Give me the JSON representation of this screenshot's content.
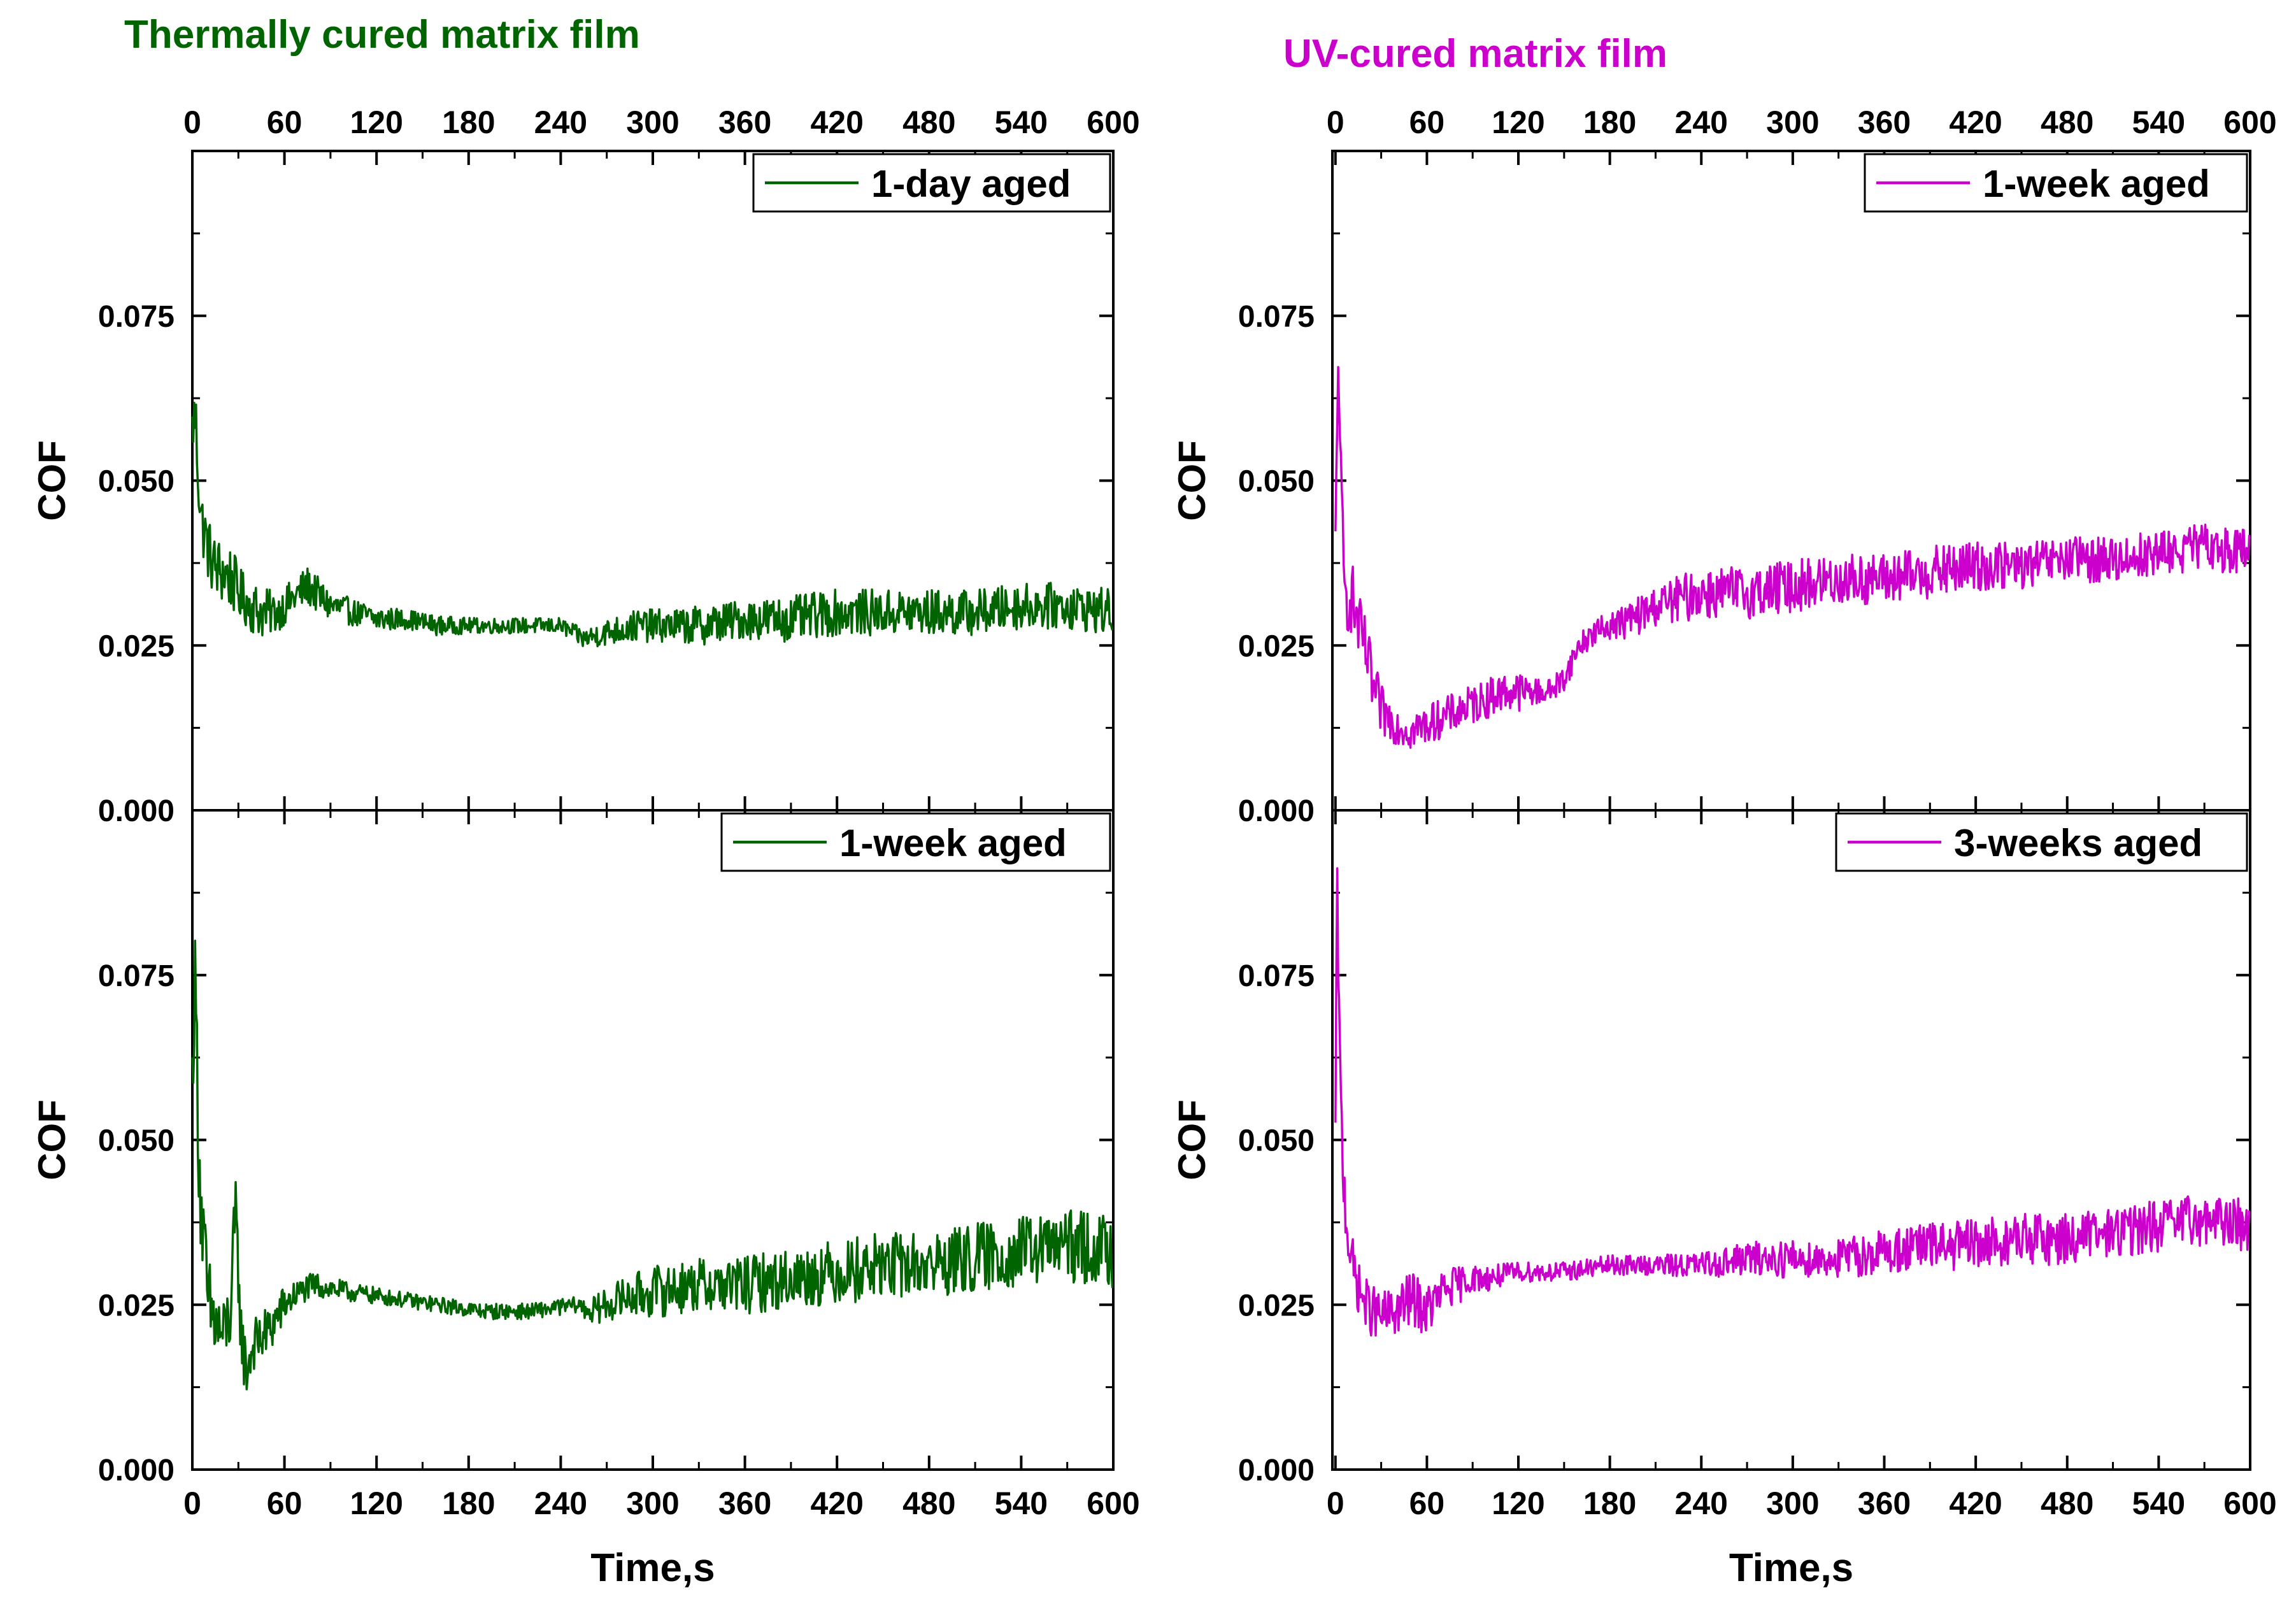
{
  "figure": {
    "left_title": "Thermally cured matrix film",
    "right_title": "UV-cured matrix film",
    "left_color": "#006400",
    "right_color": "#CC00CC"
  },
  "chart_data": [
    {
      "type": "line",
      "id": "tl",
      "color": "#006400",
      "legend": "1-day aged",
      "legend_location": "top-right",
      "xlabel": "",
      "ylabel": "COF",
      "xlim": [
        0,
        600
      ],
      "ylim": [
        0,
        0.1
      ],
      "xticks": [
        "0",
        "60",
        "120",
        "180",
        "240",
        "300",
        "360",
        "420",
        "480",
        "540",
        "600"
      ],
      "yticks": [
        "0.000",
        "0.025",
        "0.050",
        "0.075"
      ],
      "series": [
        {
          "name": "1-day aged",
          "x": [
            0,
            2,
            4,
            6,
            10,
            14,
            20,
            26,
            30,
            38,
            45,
            55,
            65,
            75,
            90,
            105,
            120,
            140,
            160,
            180,
            200,
            220,
            240,
            255,
            270,
            290,
            310,
            330,
            360,
            390,
            420,
            450,
            480,
            510,
            540,
            570,
            600
          ],
          "y": [
            0.058,
            0.06,
            0.05,
            0.044,
            0.04,
            0.037,
            0.036,
            0.035,
            0.033,
            0.031,
            0.03,
            0.03,
            0.032,
            0.034,
            0.031,
            0.03,
            0.029,
            0.029,
            0.028,
            0.028,
            0.028,
            0.028,
            0.028,
            0.026,
            0.027,
            0.028,
            0.028,
            0.028,
            0.029,
            0.029,
            0.03,
            0.03,
            0.03,
            0.03,
            0.031,
            0.031,
            0.03
          ],
          "noise": [
            0.004,
            0.006,
            0.005,
            0.005,
            0.005,
            0.005,
            0.005,
            0.005,
            0.004,
            0.004,
            0.004,
            0.003,
            0.003,
            0.003,
            0.0025,
            0.002,
            0.002,
            0.0015,
            0.0015,
            0.0012,
            0.0012,
            0.0012,
            0.0012,
            0.0015,
            0.002,
            0.0025,
            0.0025,
            0.003,
            0.003,
            0.0035,
            0.0035,
            0.0035,
            0.0035,
            0.0035,
            0.0035,
            0.0035,
            0.0035
          ]
        }
      ]
    },
    {
      "type": "line",
      "id": "bl",
      "color": "#006400",
      "legend": "1-week aged",
      "legend_location": "top-right",
      "xlabel": "Time,s",
      "ylabel": "COF",
      "xlim": [
        0,
        600
      ],
      "ylim": [
        0,
        0.1
      ],
      "xticks": [
        "0",
        "60",
        "120",
        "180",
        "240",
        "300",
        "360",
        "420",
        "480",
        "540",
        "600"
      ],
      "yticks": [
        "0.000",
        "0.025",
        "0.050",
        "0.075"
      ],
      "series": [
        {
          "name": "1-week aged",
          "x": [
            0,
            2,
            4,
            6,
            8,
            10,
            15,
            20,
            25,
            28,
            30,
            32,
            35,
            40,
            50,
            60,
            70,
            80,
            100,
            130,
            160,
            190,
            220,
            250,
            260,
            280,
            300,
            330,
            360,
            390,
            420,
            450,
            480,
            510,
            540,
            570,
            600
          ],
          "y": [
            0.06,
            0.075,
            0.05,
            0.038,
            0.032,
            0.025,
            0.022,
            0.02,
            0.024,
            0.038,
            0.03,
            0.02,
            0.015,
            0.019,
            0.021,
            0.025,
            0.027,
            0.028,
            0.027,
            0.026,
            0.025,
            0.024,
            0.024,
            0.025,
            0.024,
            0.026,
            0.027,
            0.028,
            0.028,
            0.029,
            0.03,
            0.031,
            0.031,
            0.032,
            0.033,
            0.034,
            0.033
          ],
          "noise": [
            0.005,
            0.008,
            0.008,
            0.008,
            0.008,
            0.008,
            0.007,
            0.006,
            0.006,
            0.007,
            0.006,
            0.005,
            0.005,
            0.004,
            0.004,
            0.003,
            0.002,
            0.002,
            0.0015,
            0.0012,
            0.0012,
            0.0012,
            0.0012,
            0.0012,
            0.002,
            0.003,
            0.004,
            0.004,
            0.0045,
            0.0045,
            0.005,
            0.005,
            0.005,
            0.0055,
            0.0055,
            0.0055,
            0.0055
          ]
        }
      ]
    },
    {
      "type": "line",
      "id": "tr",
      "color": "#CC00CC",
      "legend": "1-week aged",
      "legend_location": "top-right",
      "xlabel": "",
      "ylabel": "COF",
      "xlim": [
        -2,
        600
      ],
      "ylim": [
        0,
        0.1
      ],
      "xticks": [
        "0",
        "60",
        "120",
        "180",
        "240",
        "300",
        "360",
        "420",
        "480",
        "540",
        "600"
      ],
      "yticks": [
        "0.000",
        "0.025",
        "0.050",
        "0.075"
      ],
      "series": [
        {
          "name": "1-week aged",
          "x": [
            0,
            2,
            4,
            6,
            10,
            15,
            20,
            25,
            30,
            40,
            50,
            60,
            70,
            80,
            90,
            100,
            110,
            120,
            130,
            140,
            150,
            160,
            170,
            180,
            195,
            210,
            240,
            270,
            300,
            330,
            360,
            390,
            420,
            450,
            480,
            510,
            540,
            570,
            600
          ],
          "y": [
            0.04,
            0.07,
            0.045,
            0.032,
            0.033,
            0.028,
            0.024,
            0.018,
            0.015,
            0.013,
            0.012,
            0.013,
            0.014,
            0.015,
            0.016,
            0.017,
            0.018,
            0.018,
            0.018,
            0.018,
            0.02,
            0.025,
            0.027,
            0.028,
            0.029,
            0.031,
            0.033,
            0.033,
            0.034,
            0.035,
            0.035,
            0.036,
            0.037,
            0.037,
            0.038,
            0.038,
            0.039,
            0.04,
            0.039
          ],
          "noise": [
            0.004,
            0.004,
            0.006,
            0.006,
            0.006,
            0.005,
            0.005,
            0.005,
            0.004,
            0.003,
            0.003,
            0.003,
            0.003,
            0.003,
            0.003,
            0.003,
            0.003,
            0.003,
            0.002,
            0.002,
            0.002,
            0.002,
            0.002,
            0.002,
            0.003,
            0.003,
            0.004,
            0.004,
            0.004,
            0.004,
            0.004,
            0.004,
            0.004,
            0.0035,
            0.0035,
            0.0035,
            0.0035,
            0.0035,
            0.0035
          ]
        }
      ]
    },
    {
      "type": "line",
      "id": "br",
      "color": "#CC00CC",
      "legend": "3-weeks aged",
      "legend_location": "top-right",
      "xlabel": "Time,s",
      "ylabel": "COF",
      "xlim": [
        -2,
        600
      ],
      "ylim": [
        0,
        0.1
      ],
      "xticks": [
        "0",
        "60",
        "120",
        "180",
        "240",
        "300",
        "360",
        "420",
        "480",
        "540",
        "600"
      ],
      "yticks": [
        "0.000",
        "0.025",
        "0.050",
        "0.075"
      ],
      "series": [
        {
          "name": "3-weeks aged",
          "x": [
            0,
            1,
            2,
            3,
            5,
            8,
            12,
            16,
            20,
            25,
            30,
            40,
            50,
            60,
            70,
            80,
            90,
            100,
            120,
            150,
            180,
            210,
            240,
            270,
            300,
            330,
            360,
            390,
            420,
            450,
            480,
            510,
            540,
            570,
            600
          ],
          "y": [
            0.05,
            0.09,
            0.075,
            0.06,
            0.045,
            0.036,
            0.03,
            0.027,
            0.025,
            0.024,
            0.023,
            0.024,
            0.026,
            0.024,
            0.027,
            0.028,
            0.029,
            0.029,
            0.03,
            0.03,
            0.031,
            0.031,
            0.031,
            0.032,
            0.032,
            0.032,
            0.033,
            0.034,
            0.034,
            0.035,
            0.035,
            0.036,
            0.037,
            0.038,
            0.037
          ],
          "noise": [
            0.004,
            0.004,
            0.005,
            0.005,
            0.005,
            0.005,
            0.004,
            0.004,
            0.004,
            0.004,
            0.004,
            0.004,
            0.004,
            0.004,
            0.003,
            0.003,
            0.002,
            0.002,
            0.0015,
            0.0015,
            0.0015,
            0.0015,
            0.002,
            0.0025,
            0.003,
            0.003,
            0.0035,
            0.0035,
            0.004,
            0.004,
            0.004,
            0.004,
            0.004,
            0.004,
            0.004
          ]
        }
      ]
    }
  ]
}
